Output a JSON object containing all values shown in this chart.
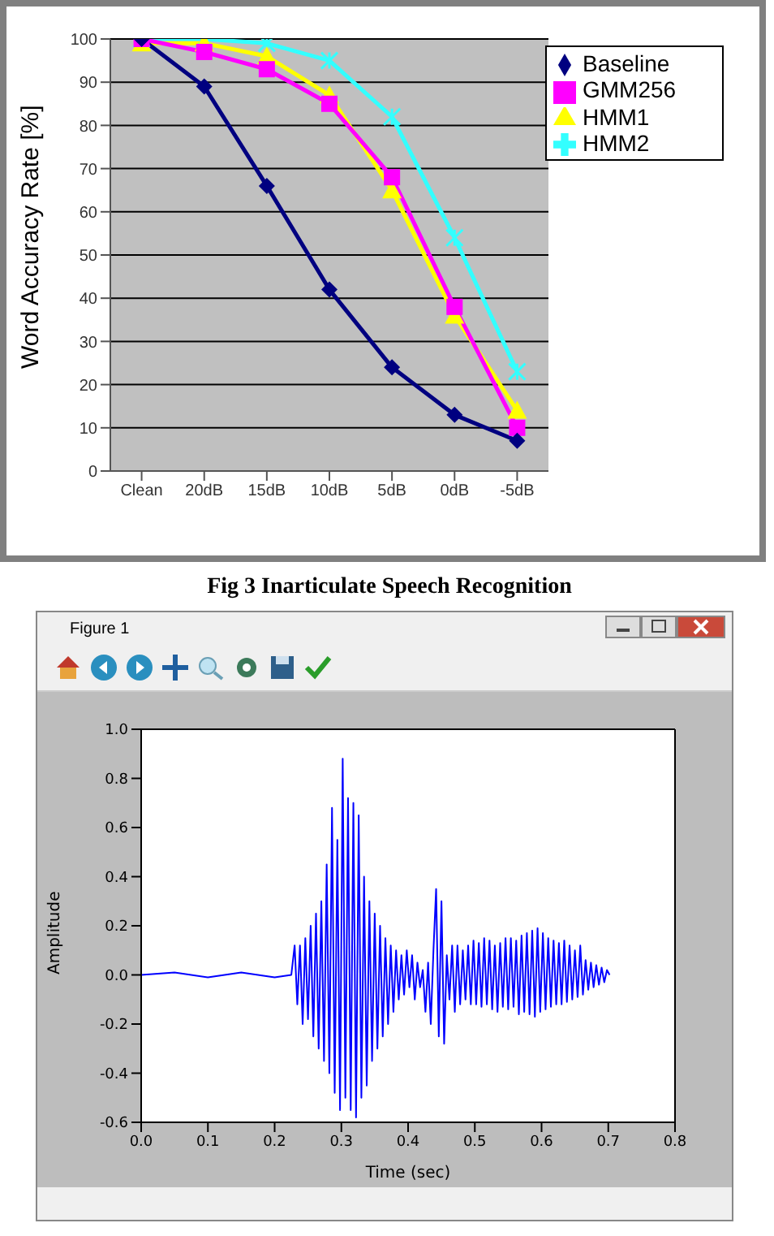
{
  "chart_data": [
    {
      "type": "line",
      "title": "Fig 3 Inarticulate Speech Recognition",
      "ylabel": "Word Accuracy Rate [%]",
      "categories": [
        "Clean",
        "20dB",
        "15dB",
        "10dB",
        "5dB",
        "0dB",
        "-5dB"
      ],
      "series": [
        {
          "name": "Baseline",
          "color": "#000080",
          "marker": "diamond",
          "values": [
            100,
            89,
            66,
            42,
            24,
            13,
            7
          ]
        },
        {
          "name": "GMM256",
          "color": "#ff00ff",
          "marker": "square",
          "values": [
            100,
            97,
            93,
            85,
            68,
            38,
            10
          ]
        },
        {
          "name": "HMM1",
          "color": "#ffff00",
          "marker": "triangle",
          "values": [
            99,
            99,
            96,
            87,
            65,
            36,
            14
          ]
        },
        {
          "name": "HMM2",
          "color": "#33ffff",
          "marker": "cross",
          "values": [
            100,
            100,
            99,
            95,
            82,
            54,
            23
          ]
        }
      ],
      "ylim": [
        0,
        100
      ],
      "yticks": [
        0,
        10,
        20,
        30,
        40,
        50,
        60,
        70,
        80,
        90,
        100
      ],
      "grid": "y",
      "legend": "top right"
    },
    {
      "type": "line",
      "xlabel": "Time (sec)",
      "ylabel": "Amplitude",
      "annotations": [
        "Figure 1"
      ],
      "marker": "none",
      "x": [
        0,
        0.05,
        0.1,
        0.15,
        0.2,
        0.225,
        0.23,
        0.234,
        0.238,
        0.242,
        0.246,
        0.25,
        0.254,
        0.258,
        0.262,
        0.266,
        0.27,
        0.274,
        0.278,
        0.282,
        0.286,
        0.29,
        0.294,
        0.298,
        0.302,
        0.306,
        0.31,
        0.314,
        0.318,
        0.322,
        0.326,
        0.33,
        0.334,
        0.338,
        0.342,
        0.346,
        0.35,
        0.354,
        0.358,
        0.362,
        0.366,
        0.37,
        0.374,
        0.378,
        0.382,
        0.386,
        0.39,
        0.394,
        0.398,
        0.402,
        0.406,
        0.41,
        0.414,
        0.418,
        0.422,
        0.426,
        0.43,
        0.434,
        0.438,
        0.442,
        0.446,
        0.45,
        0.454,
        0.458,
        0.462,
        0.466,
        0.47,
        0.474,
        0.478,
        0.482,
        0.486,
        0.49,
        0.494,
        0.498,
        0.502,
        0.506,
        0.51,
        0.514,
        0.518,
        0.522,
        0.526,
        0.53,
        0.534,
        0.538,
        0.542,
        0.546,
        0.55,
        0.554,
        0.558,
        0.562,
        0.566,
        0.57,
        0.574,
        0.578,
        0.582,
        0.586,
        0.59,
        0.594,
        0.598,
        0.602,
        0.606,
        0.61,
        0.614,
        0.618,
        0.622,
        0.626,
        0.63,
        0.634,
        0.638,
        0.642,
        0.646,
        0.65,
        0.654,
        0.658,
        0.662,
        0.666,
        0.67,
        0.674,
        0.678,
        0.682,
        0.686,
        0.69,
        0.694,
        0.698,
        0.702
      ],
      "series": [
        {
          "color": "#0000ff",
          "values": [
            0,
            0.01,
            -0.01,
            0.01,
            -0.01,
            0,
            0.12,
            -0.12,
            0.12,
            -0.2,
            0.15,
            -0.18,
            0.2,
            -0.25,
            0.25,
            -0.3,
            0.3,
            -0.35,
            0.45,
            -0.4,
            0.68,
            -0.48,
            0.55,
            -0.55,
            0.88,
            -0.5,
            0.72,
            -0.55,
            0.7,
            -0.58,
            0.65,
            -0.5,
            0.4,
            -0.45,
            0.3,
            -0.35,
            0.25,
            -0.3,
            0.2,
            -0.25,
            0.15,
            -0.2,
            0.12,
            -0.15,
            0.1,
            -0.1,
            0.08,
            -0.08,
            0.1,
            -0.05,
            0.08,
            -0.1,
            0.05,
            -0.05,
            0.02,
            -0.15,
            0.05,
            -0.2,
            0.1,
            0.35,
            -0.25,
            0.3,
            -0.28,
            0.08,
            -0.1,
            0.12,
            -0.15,
            0.12,
            -0.12,
            0.1,
            -0.1,
            0.12,
            -0.12,
            0.14,
            -0.12,
            0.13,
            -0.13,
            0.15,
            -0.12,
            0.14,
            -0.14,
            0.12,
            -0.15,
            0.13,
            -0.13,
            0.15,
            -0.14,
            0.15,
            -0.13,
            0.14,
            -0.16,
            0.16,
            -0.15,
            0.17,
            -0.16,
            0.18,
            -0.17,
            0.19,
            -0.15,
            0.17,
            -0.14,
            0.15,
            -0.13,
            0.14,
            -0.12,
            0.13,
            -0.12,
            0.14,
            -0.11,
            0.12,
            -0.1,
            0.1,
            -0.09,
            0.12,
            -0.08,
            0.06,
            -0.06,
            0.05,
            -0.05,
            0.04,
            -0.04,
            0.03,
            -0.03,
            0.02,
            0
          ]
        }
      ],
      "xlim": [
        0,
        0.8
      ],
      "xticks": [
        {
          "value": 0,
          "label": "0.0"
        },
        0.1,
        0.2,
        0.3,
        0.4,
        0.5,
        0.6,
        0.7,
        0.8
      ],
      "ylim": [
        -0.6,
        1
      ],
      "yticks": [
        -0.6,
        -0.4,
        -0.2,
        {
          "value": 0,
          "label": "0.0"
        },
        0.2,
        0.4,
        0.6,
        0.8,
        {
          "value": 1,
          "label": "1.0"
        }
      ]
    }
  ]
}
